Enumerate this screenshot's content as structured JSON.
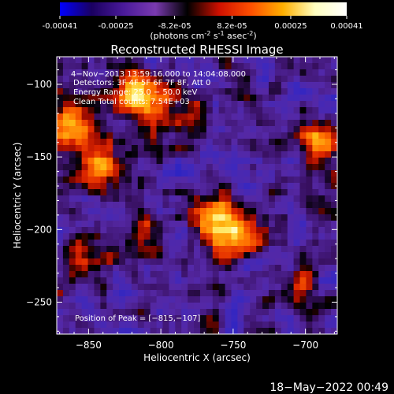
{
  "colorbar": {
    "tick_labels": [
      "-0.00041",
      "-0.00025",
      "-8.2e-05",
      "8.2e-05",
      "0.00025",
      "0.00041"
    ],
    "tick_values": [
      -0.00041,
      -0.00025,
      -8.2e-05,
      8.2e-05,
      0.00025,
      0.00041
    ],
    "range": [
      -0.00041,
      0.00041
    ],
    "unit_base": "(photons cm",
    "unit_sup1": "-2",
    "unit_mid": " s",
    "unit_sup2": "-1",
    "unit_tail": " asec",
    "unit_sup3": "-2",
    "unit_close": ")",
    "colors": [
      "#0000ff",
      "#1a0060",
      "#4a1a9a",
      "#7a3ab0",
      "#000000",
      "#d01000",
      "#ff5000",
      "#ffb000",
      "#ffffc0",
      "#ffffff"
    ]
  },
  "chart_data": {
    "type": "heatmap",
    "title": "Reconstructed RHESSI Image",
    "xlabel": "Heliocentric X (arcsec)",
    "ylabel": "Heliocentric Y (arcsec)",
    "xlim": [
      -872,
      -678
    ],
    "ylim": [
      -272,
      -81
    ],
    "x_ticks": [
      -850,
      -800,
      -750,
      -700
    ],
    "x_tick_labels": [
      "−850",
      "−800",
      "−750",
      "−700"
    ],
    "y_ticks": [
      -100,
      -150,
      -200,
      -250
    ],
    "y_tick_labels": [
      "−100",
      "−150",
      "−200",
      "−250"
    ],
    "annotations": [
      "4−Nov−2013 13:59:16.000 to 14:04:08.000",
      "Detectors: 3F 4F 5F 6F 7F 8F, Att 0",
      "Energy Range: 25.0 − 50.0 keV",
      "Clean    Total counts: 7.54E+03"
    ],
    "peak_label": "Position of Peak = [−815,−107]",
    "peak": [
      -815,
      -107
    ],
    "bright_sources": [
      {
        "x": -860,
        "y": -128,
        "v": 0.85
      },
      {
        "x": -840,
        "y": -158,
        "v": 0.75
      },
      {
        "x": -815,
        "y": -107,
        "v": 1.0
      },
      {
        "x": -762,
        "y": -193,
        "v": 0.95
      },
      {
        "x": -745,
        "y": -206,
        "v": 0.65
      },
      {
        "x": -690,
        "y": -140,
        "v": 0.75
      },
      {
        "x": -785,
        "y": -120,
        "v": 0.4
      },
      {
        "x": -815,
        "y": -205,
        "v": 0.4
      },
      {
        "x": -705,
        "y": -240,
        "v": 0.35
      },
      {
        "x": -855,
        "y": -225,
        "v": 0.3
      }
    ]
  },
  "footer": {
    "timestamp": "18−May−2022 00:49"
  }
}
